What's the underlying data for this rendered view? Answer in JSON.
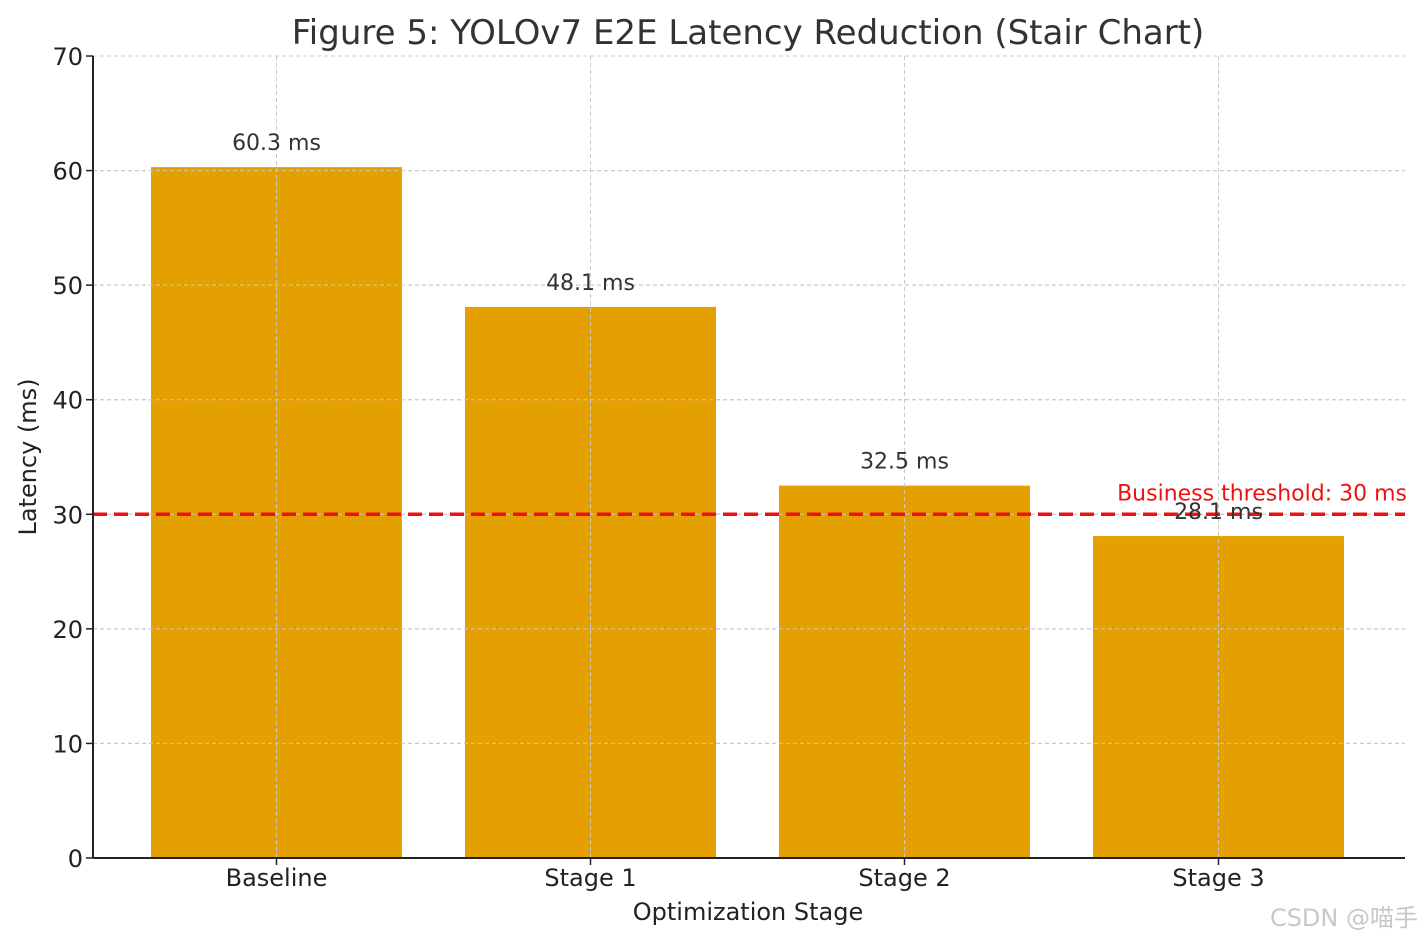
{
  "chart_data": {
    "type": "bar",
    "title": "Figure 5: YOLOv7 E2E Latency Reduction (Stair Chart)",
    "xlabel": "Optimization Stage",
    "ylabel": "Latency (ms)",
    "categories": [
      "Baseline",
      "Stage 1",
      "Stage 2",
      "Stage 3"
    ],
    "values": [
      60.3,
      48.1,
      32.5,
      28.1
    ],
    "data_labels": [
      "60.3 ms",
      "48.1 ms",
      "32.5 ms",
      "28.1 ms"
    ],
    "ylim": [
      0,
      70
    ],
    "yticks": [
      0,
      10,
      20,
      30,
      40,
      50,
      60,
      70
    ],
    "grid": true,
    "bar_color": "#E3A000",
    "threshold": {
      "value": 30,
      "label": "Business threshold: 30 ms",
      "color": "#EE1111",
      "style": "dashed"
    }
  },
  "watermark": "CSDN @喵手"
}
